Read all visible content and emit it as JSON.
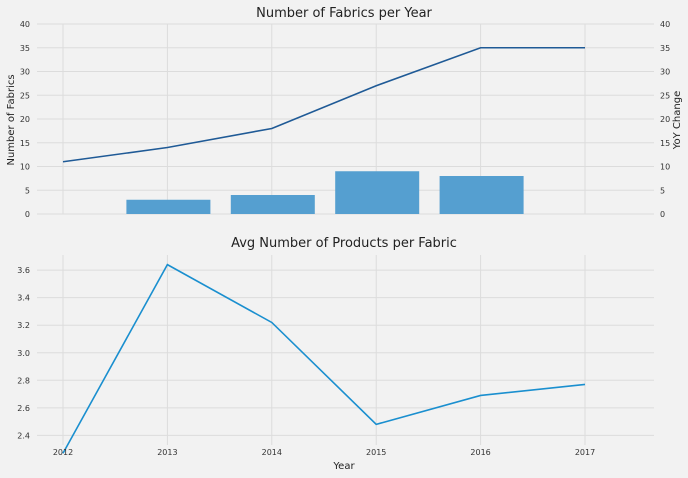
{
  "chart_data": [
    {
      "type": "line+bar",
      "title": "Number of Fabrics per Year",
      "ylabel": "Number of Fabrics",
      "y2label": "YoY Change",
      "x": [
        2012,
        2013,
        2014,
        2015,
        2016,
        2017
      ],
      "ylim": [
        0,
        40
      ],
      "y2lim": [
        0,
        40
      ],
      "yticks": [
        0,
        5,
        10,
        15,
        20,
        25,
        30,
        35,
        40
      ],
      "series": [
        {
          "name": "",
          "kind": "line",
          "axis": "left",
          "color": "#1f5a96",
          "values": [
            11,
            14,
            18,
            27,
            35,
            35
          ]
        }
      ],
      "bars": {
        "axis": "right",
        "color": "#559fd0",
        "x": [
          2013,
          2014,
          2015,
          2016
        ],
        "values": [
          3,
          4,
          9,
          8
        ]
      },
      "grid": true
    },
    {
      "type": "line",
      "title": "Avg Number of Products per Fabric",
      "xlabel": "Year",
      "x": [
        2012,
        2013,
        2014,
        2015,
        2016,
        2017
      ],
      "xticks": [
        "2012",
        "2013",
        "2014",
        "2015",
        "2016",
        "2017"
      ],
      "ylim": [
        2.33,
        3.71
      ],
      "yticks": [
        "2.4",
        "2.6",
        "2.8",
        "3.0",
        "3.2",
        "3.4",
        "3.6"
      ],
      "series": [
        {
          "name": "",
          "color": "#1a8fcf",
          "values": [
            2.27,
            3.64,
            3.22,
            2.48,
            2.69,
            2.77
          ]
        }
      ],
      "grid": true
    }
  ]
}
